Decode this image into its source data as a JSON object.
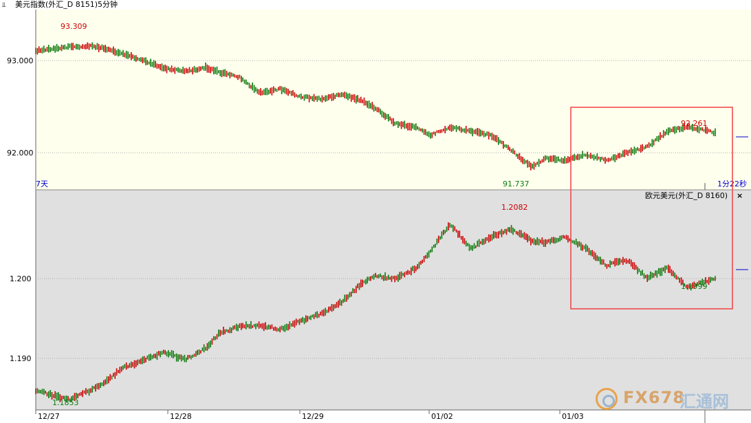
{
  "window": {
    "title": "美元指数(外汇_D 8151)5分钟",
    "icon": "chart-switch-icon"
  },
  "colors": {
    "up": "#cc0000",
    "down": "#0a7a0a",
    "top_bg": "#ffffee",
    "bottom_bg": "#e0e0e0",
    "highlight_box": "#f04040"
  },
  "top_panel": {
    "period_label": "7天",
    "countdown": "1分22秒",
    "high_label": "93.309",
    "low_label": "91.737",
    "recent_high_label": "92.261"
  },
  "bottom_panel": {
    "title": "欧元美元(外汇_D 8160)",
    "close_label": "×",
    "high_label": "1.2082",
    "low_label": "1.1853",
    "recent_low_label": "1.1999"
  },
  "x_axis_labels": [
    "12/27",
    "12/28",
    "12/29",
    "01/02",
    "01/03"
  ],
  "watermark": {
    "text": "FX678",
    "cn": "汇通网"
  },
  "chart_data": [
    {
      "type": "line",
      "title": "美元指数(外汇_D 8151)5分钟",
      "y_ticks": [
        "93.000",
        "92.000"
      ],
      "ylim": [
        91.6,
        93.55
      ],
      "categories": [
        "12/27",
        "12/28",
        "12/29",
        "01/02",
        "01/03"
      ],
      "series": [
        {
          "x": [
            0,
            0.05,
            0.08,
            0.1,
            0.13,
            0.16,
            0.19,
            0.22,
            0.25,
            0.27,
            0.3,
            0.33,
            0.36,
            0.39,
            0.42,
            0.45,
            0.48,
            0.5,
            0.53,
            0.56,
            0.58,
            0.61,
            0.64,
            0.67,
            0.7,
            0.73,
            0.75,
            0.78,
            0.81,
            0.84,
            0.87,
            0.9,
            0.93,
            0.96,
            1.0
          ],
          "values": [
            93.25,
            93.3,
            93.309,
            93.28,
            93.2,
            93.12,
            93.02,
            92.98,
            93.03,
            92.97,
            92.9,
            92.7,
            92.75,
            92.65,
            92.62,
            92.68,
            92.6,
            92.5,
            92.3,
            92.25,
            92.15,
            92.25,
            92.2,
            92.15,
            91.95,
            91.737,
            91.85,
            91.82,
            91.9,
            91.82,
            91.92,
            92.0,
            92.2,
            92.261,
            92.18
          ]
        }
      ],
      "annotations": [
        "93.309",
        "91.737",
        "92.261"
      ]
    },
    {
      "type": "line",
      "title": "欧元美元(外汇_D 8160)",
      "y_ticks": [
        "1.200",
        "1.190"
      ],
      "ylim": [
        1.1845,
        1.2105
      ],
      "categories": [
        "12/27",
        "12/28",
        "12/29",
        "01/02",
        "01/03"
      ],
      "series": [
        {
          "x": [
            0,
            0.05,
            0.08,
            0.1,
            0.13,
            0.16,
            0.19,
            0.22,
            0.25,
            0.27,
            0.3,
            0.33,
            0.36,
            0.39,
            0.42,
            0.45,
            0.48,
            0.5,
            0.53,
            0.56,
            0.58,
            0.61,
            0.64,
            0.67,
            0.7,
            0.73,
            0.75,
            0.78,
            0.81,
            0.84,
            0.87,
            0.9,
            0.93,
            0.96,
            1.0
          ],
          "values": [
            1.1865,
            1.1853,
            1.1865,
            1.1875,
            1.1895,
            1.1905,
            1.1915,
            1.1905,
            1.192,
            1.194,
            1.1948,
            1.195,
            1.1945,
            1.1955,
            1.1965,
            1.198,
            1.2005,
            1.2015,
            1.201,
            1.2025,
            1.2045,
            1.2082,
            1.205,
            1.2065,
            1.2075,
            1.206,
            1.2058,
            1.2065,
            1.205,
            1.2028,
            1.2035,
            1.2012,
            1.2025,
            1.1999,
            1.2012
          ]
        }
      ],
      "annotations": [
        "1.2082",
        "1.1853",
        "1.1999"
      ]
    }
  ]
}
